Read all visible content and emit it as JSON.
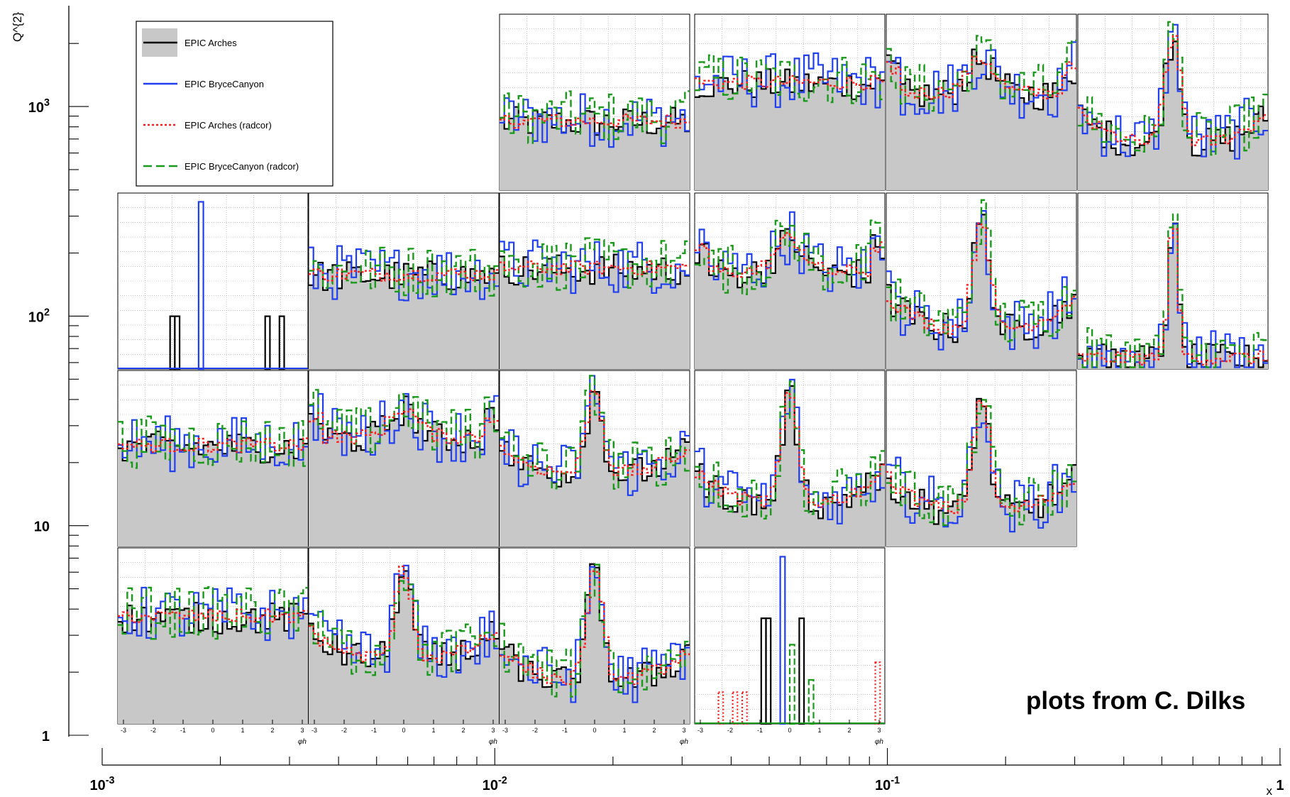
{
  "chart_data": {
    "type": "line",
    "title": "",
    "ylabel": "Q^{2}",
    "xlabel": "x",
    "y_scale": "log",
    "x_scale": "log",
    "y_outer_ticks": [
      {
        "value": 1,
        "label": "1"
      },
      {
        "value": 10,
        "label": "10"
      },
      {
        "value": 100,
        "label": "10^2"
      },
      {
        "value": 1000,
        "label": "10^3"
      }
    ],
    "x_outer_ticks": [
      {
        "value": 0.001,
        "label": "10^-3"
      },
      {
        "value": 0.01,
        "label": "10^-2"
      },
      {
        "value": 0.1,
        "label": "10^-1"
      },
      {
        "value": 1,
        "label": "1"
      }
    ],
    "xlim": [
      0.001,
      1
    ],
    "ylim": [
      1,
      2500
    ],
    "subplot_xlabel": "φh",
    "subplot_x_ticks": [
      -3,
      -2,
      -1,
      0,
      1,
      2,
      3
    ],
    "legend_position": "top-left",
    "legend": [
      {
        "label": "EPIC Arches",
        "color": "#000000",
        "fill": "#c8c8c8",
        "style": "solid"
      },
      {
        "label": "EPIC BryceCanyon",
        "color": "#1f3ff0",
        "style": "solid"
      },
      {
        "label": "EPIC Arches (radcor)",
        "color": "#ff1a1a",
        "style": "dotted"
      },
      {
        "label": "EPIC BryceCanyon (radcor)",
        "color": "#1a9a1a",
        "style": "dashed"
      }
    ],
    "panels": [
      {
        "row": 0,
        "col": 3,
        "shape": "noisy",
        "base": 0.15
      },
      {
        "row": 0,
        "col": 4,
        "shape": "noisy",
        "base": 0.45
      },
      {
        "row": 0,
        "col": 5,
        "shape": "mild-peak",
        "base": 0.35
      },
      {
        "row": 0,
        "col": 6,
        "shape": "peak",
        "base": 0.12
      },
      {
        "row": 1,
        "col": 1,
        "shape": "sparse",
        "base": 0.0
      },
      {
        "row": 1,
        "col": 2,
        "shape": "noisy",
        "base": 0.35
      },
      {
        "row": 1,
        "col": 3,
        "shape": "noisy",
        "base": 0.4
      },
      {
        "row": 1,
        "col": 4,
        "shape": "mild-peak",
        "base": 0.35
      },
      {
        "row": 1,
        "col": 5,
        "shape": "peak",
        "base": 0.08
      },
      {
        "row": 1,
        "col": 6,
        "shape": "sharp-peak",
        "base": 0.02
      },
      {
        "row": 2,
        "col": 1,
        "shape": "noisy",
        "base": 0.4
      },
      {
        "row": 2,
        "col": 2,
        "shape": "mild-peak",
        "base": 0.45
      },
      {
        "row": 2,
        "col": 3,
        "shape": "peak",
        "base": 0.3
      },
      {
        "row": 2,
        "col": 4,
        "shape": "peak",
        "base": 0.1
      },
      {
        "row": 2,
        "col": 5,
        "shape": "peak",
        "base": 0.05
      },
      {
        "row": 3,
        "col": 1,
        "shape": "noisy",
        "base": 0.45
      },
      {
        "row": 3,
        "col": 2,
        "shape": "peak",
        "base": 0.25
      },
      {
        "row": 3,
        "col": 3,
        "shape": "peak",
        "base": 0.1
      },
      {
        "row": 3,
        "col": 4,
        "shape": "sparse",
        "base": 0.0
      }
    ]
  },
  "credit": "plots from C. Dilks",
  "colors": {
    "fill": "#c8c8c8",
    "black": "#000000",
    "blue": "#1f3ff0",
    "red": "#ff1a1a",
    "green": "#1a9a1a"
  }
}
